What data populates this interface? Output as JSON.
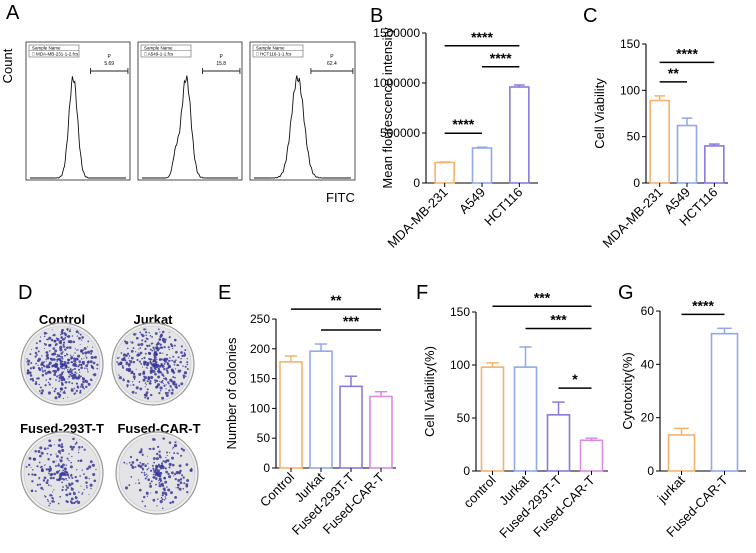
{
  "panel_letters": [
    "A",
    "B",
    "C",
    "D",
    "E",
    "F",
    "G"
  ],
  "flow": {
    "y_label": "Count",
    "x_label": "FITC",
    "header_label": "Sample Name",
    "gate_label": "P",
    "samples": [
      {
        "file": "MDA-MB-231-1-2.fcs",
        "percent": "5.69"
      },
      {
        "file": "A549-1-1.fcs",
        "percent": "15.8"
      },
      {
        "file": "HCT116-1-1.fcs",
        "percent": "62.4"
      }
    ]
  },
  "colonies": {
    "labels": [
      "Control",
      "Jurkat",
      "Fused-293T-T",
      "Fused-CAR-T"
    ]
  },
  "colors": {
    "orange": "#f6b26b",
    "blue": "#8fa8ee",
    "purple": "#8a79e0",
    "pink": "#d98ce0",
    "colony": "#3a3a9a"
  },
  "chart_data": [
    {
      "panel": "B",
      "type": "bar",
      "categories": [
        "MDA-MB-231",
        "A549",
        "HCT116"
      ],
      "values": [
        205000,
        350000,
        960000
      ],
      "errors": [
        5000,
        8000,
        20000
      ],
      "ylabel": "Mean flourescence intensity",
      "ylim": [
        0,
        1500000
      ],
      "yticks": [
        0,
        500000,
        1000000,
        1500000
      ],
      "ytick_labels": [
        "0",
        "500000",
        "1000000",
        "1500000"
      ],
      "significance": [
        {
          "from": 0,
          "to": 1,
          "label": "****"
        },
        {
          "from": 1,
          "to": 2,
          "label": "****"
        },
        {
          "from": 0,
          "to": 2,
          "label": "****"
        }
      ]
    },
    {
      "panel": "C",
      "type": "bar",
      "categories": [
        "MDA-MB-231",
        "A549",
        "HCT116"
      ],
      "values": [
        89,
        62,
        40
      ],
      "errors": [
        5,
        8,
        2
      ],
      "ylabel": "Cell Viability",
      "ylim": [
        0,
        150
      ],
      "yticks": [
        0,
        50,
        100,
        150
      ],
      "ytick_labels": [
        "0",
        "50",
        "100",
        "150"
      ],
      "significance": [
        {
          "from": 0,
          "to": 1,
          "label": "**"
        },
        {
          "from": 0,
          "to": 2,
          "label": "****"
        }
      ]
    },
    {
      "panel": "E",
      "type": "bar",
      "categories": [
        "Control",
        "Jurkat",
        "Fused-293T-T",
        "Fused-CAR-T"
      ],
      "values": [
        178,
        196,
        137,
        120
      ],
      "errors": [
        10,
        12,
        17,
        8
      ],
      "ylabel": "Number of colonies",
      "ylim": [
        0,
        250
      ],
      "yticks": [
        0,
        50,
        100,
        150,
        200,
        250
      ],
      "ytick_labels": [
        "0",
        "50",
        "100",
        "150",
        "200",
        "250"
      ],
      "significance": [
        {
          "from": 1,
          "to": 3,
          "label": "***"
        },
        {
          "from": 0,
          "to": 3,
          "label": "**"
        }
      ]
    },
    {
      "panel": "F",
      "type": "bar",
      "categories": [
        "control",
        "Jurkat",
        "Fused-293T-T",
        "Fused-CAR-T"
      ],
      "values": [
        98,
        98,
        53,
        29
      ],
      "errors": [
        4,
        19,
        12,
        2
      ],
      "ylabel": "Cell Viability(%)",
      "ylim": [
        0,
        150
      ],
      "yticks": [
        0,
        50,
        100,
        150
      ],
      "ytick_labels": [
        "0",
        "50",
        "100",
        "150"
      ],
      "significance": [
        {
          "from": 2,
          "to": 3,
          "label": "*"
        },
        {
          "from": 1,
          "to": 3,
          "label": "***"
        },
        {
          "from": 0,
          "to": 3,
          "label": "***"
        }
      ]
    },
    {
      "panel": "G",
      "type": "bar",
      "categories": [
        "jurkat",
        "Fused-CAR-T"
      ],
      "values": [
        13.5,
        51.5
      ],
      "errors": [
        2.5,
        2.0
      ],
      "ylabel": "Cytotoxity(%)",
      "ylim": [
        0,
        60
      ],
      "yticks": [
        0,
        20,
        40,
        60
      ],
      "ytick_labels": [
        "0",
        "20",
        "40",
        "60"
      ],
      "significance": [
        {
          "from": 0,
          "to": 1,
          "label": "****"
        }
      ]
    }
  ]
}
